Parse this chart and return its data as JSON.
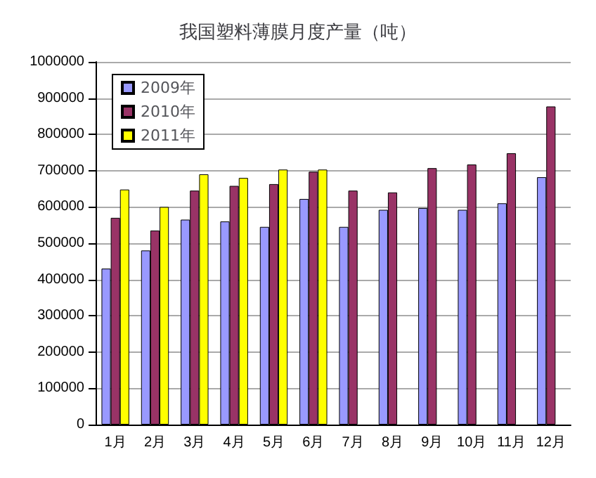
{
  "chart_data": {
    "type": "bar",
    "title": "我国塑料薄膜月度产量（吨）",
    "categories": [
      "1月",
      "2月",
      "3月",
      "4月",
      "5月",
      "6月",
      "7月",
      "8月",
      "9月",
      "10月",
      "11月",
      "12月"
    ],
    "series": [
      {
        "name": "2009年",
        "color": "#9999ff",
        "values": [
          430000,
          480000,
          565000,
          560000,
          545000,
          622000,
          545000,
          592000,
          597000,
          592000,
          610000,
          682000
        ]
      },
      {
        "name": "2010年",
        "color": "#993366",
        "values": [
          570000,
          535000,
          645000,
          658000,
          663000,
          697000,
          645000,
          640000,
          707000,
          717000,
          748000,
          877000
        ]
      },
      {
        "name": "2011年",
        "color": "#ffff00",
        "values": [
          648000,
          600000,
          690000,
          680000,
          703000,
          703000,
          null,
          null,
          null,
          null,
          null,
          null
        ]
      }
    ],
    "ylim": [
      0,
      1000000
    ],
    "yticks": [
      0,
      100000,
      200000,
      300000,
      400000,
      500000,
      600000,
      700000,
      800000,
      900000,
      1000000
    ],
    "grid": "y",
    "legend": "top left"
  }
}
